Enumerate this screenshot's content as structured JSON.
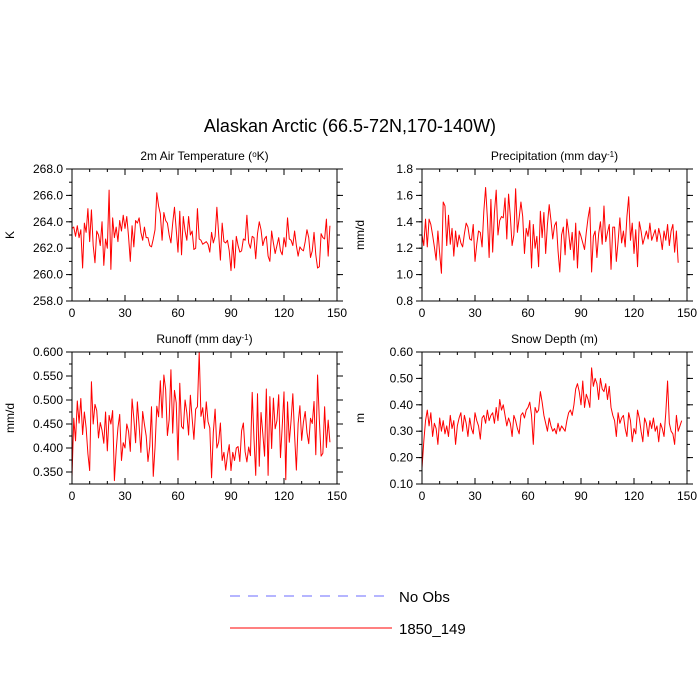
{
  "page_title": "Alaskan Arctic (66.5-72N,170-140W)",
  "legend": {
    "items": [
      {
        "label": "No Obs",
        "color": "#6b6bff",
        "dash": "dashed"
      },
      {
        "label": "1850_149",
        "color": "#ff0000",
        "dash": "solid"
      }
    ]
  },
  "chart_data": [
    {
      "type": "line",
      "title": "2m Air Temperature",
      "title_unit": "°K",
      "ylabel": "K",
      "xlim": [
        0,
        150
      ],
      "ylim": [
        258,
        268
      ],
      "xticks": [
        0,
        30,
        60,
        90,
        120,
        150
      ],
      "xtick_labels": [
        "0",
        "30",
        "60",
        "90",
        "120",
        "150"
      ],
      "yticks": [
        258,
        260,
        262,
        264,
        266,
        268
      ],
      "ytick_labels": [
        "258.0",
        "260.0",
        "262.0",
        "264.0",
        "266.0",
        "268.0"
      ],
      "series": [
        {
          "name": "1850_149",
          "color": "#ff0000",
          "values": [
            263.5,
            263.6,
            262.9,
            263.7,
            262.8,
            263.4,
            260.5,
            263.9,
            263.2,
            265.0,
            262.5,
            264.9,
            262.2,
            260.9,
            263.3,
            263.0,
            262.2,
            264.0,
            260.7,
            262.7,
            262.0,
            266.4,
            260.4,
            264.3,
            262.8,
            263.6,
            262.5,
            264.1,
            263.3,
            264.5,
            263.5,
            264.4,
            262.9,
            261.0,
            263.7,
            262.1,
            264.1,
            263.9,
            264.3,
            263.2,
            262.6,
            263.6,
            262.8,
            262.8,
            262.2,
            262.1,
            262.7,
            263.4,
            266.2,
            265.2,
            264.6,
            262.6,
            264.7,
            264.1,
            263.9,
            263.0,
            262.4,
            263.9,
            265.1,
            263.4,
            261.7,
            264.8,
            261.5,
            264.4,
            263.3,
            262.6,
            264.4,
            263.0,
            263.3,
            261.9,
            262.0,
            265.0,
            262.7,
            262.6,
            262.3,
            262.4,
            262.5,
            262.3,
            261.7,
            263.2,
            262.4,
            262.9,
            265.1,
            263.1,
            261.1,
            263.9,
            262.5,
            262.4,
            262.6,
            261.8,
            260.3,
            262.6,
            260.5,
            262.9,
            262.2,
            261.7,
            261.8,
            262.7,
            262.6,
            264.5,
            262.4,
            262.0,
            262.9,
            262.8,
            261.2,
            263.1,
            264.0,
            263.4,
            262.2,
            262.7,
            262.9,
            261.4,
            261.0,
            263.3,
            262.4,
            261.6,
            262.2,
            262.8,
            261.8,
            261.5,
            262.8,
            262.1,
            264.3,
            262.7,
            262.6,
            262.2,
            263.3,
            262.2,
            261.4,
            262.1,
            261.9,
            261.8,
            262.5,
            263.4,
            262.8,
            261.3,
            261.8,
            263.2,
            261.5,
            260.5,
            260.6,
            263.1,
            262.8,
            262.7,
            264.2,
            261.4,
            263.7
          ]
        }
      ]
    },
    {
      "type": "line",
      "title": "Precipitation (mm day",
      "title_unit": "-1",
      "ylabel": "mm/d",
      "xlim": [
        0,
        150
      ],
      "ylim": [
        0.8,
        1.8
      ],
      "xticks": [
        0,
        30,
        60,
        90,
        120,
        150
      ],
      "xtick_labels": [
        "0",
        "30",
        "60",
        "90",
        "120",
        "150"
      ],
      "yticks": [
        0.8,
        1.0,
        1.2,
        1.4,
        1.6,
        1.8
      ],
      "ytick_labels": [
        "0.8",
        "1.0",
        "1.2",
        "1.4",
        "1.6",
        "1.8"
      ],
      "series": [
        {
          "name": "1850_149",
          "color": "#ff0000",
          "values": [
            1.3,
            1.22,
            1.42,
            1.21,
            1.42,
            1.38,
            1.3,
            1.21,
            1.11,
            1.33,
            1.16,
            1.01,
            1.55,
            1.52,
            1.22,
            1.45,
            1.23,
            1.35,
            1.14,
            1.33,
            1.21,
            1.3,
            1.24,
            1.21,
            1.31,
            1.39,
            1.36,
            1.27,
            1.26,
            1.38,
            1.1,
            1.23,
            1.33,
            1.32,
            1.21,
            1.48,
            1.66,
            1.43,
            1.13,
            1.57,
            1.17,
            1.47,
            1.64,
            1.3,
            1.41,
            1.44,
            1.43,
            1.58,
            1.27,
            1.61,
            1.44,
            1.22,
            1.3,
            1.65,
            1.32,
            1.43,
            1.55,
            1.44,
            1.16,
            1.35,
            1.29,
            1.41,
            1.05,
            1.38,
            1.2,
            1.29,
            1.06,
            1.48,
            1.28,
            1.47,
            1.16,
            1.38,
            1.53,
            1.41,
            1.27,
            1.37,
            1.4,
            1.18,
            1.02,
            1.3,
            1.36,
            1.15,
            1.42,
            1.32,
            1.19,
            1.32,
            1.11,
            1.39,
            1.05,
            1.33,
            1.29,
            1.24,
            1.19,
            1.32,
            1.43,
            1.51,
            1.02,
            1.29,
            1.33,
            1.13,
            1.31,
            1.4,
            1.23,
            1.52,
            1.25,
            1.32,
            1.38,
            1.04,
            1.36,
            1.36,
            1.1,
            1.25,
            1.43,
            1.24,
            1.33,
            1.21,
            1.44,
            1.59,
            1.26,
            1.39,
            1.16,
            1.34,
            1.06,
            1.4,
            1.33,
            1.23,
            1.28,
            1.33,
            1.27,
            1.39,
            1.26,
            1.3,
            1.34,
            1.25,
            1.35,
            1.29,
            1.19,
            1.33,
            1.26,
            1.38,
            1.22,
            1.33,
            1.38,
            1.17,
            1.33,
            1.09
          ]
        }
      ]
    },
    {
      "type": "line",
      "title": "Runoff (mm day",
      "title_unit": "-1",
      "ylabel": "mm/d",
      "xlim": [
        0,
        150
      ],
      "ylim": [
        0.325,
        0.6
      ],
      "xticks": [
        0,
        30,
        60,
        90,
        120,
        150
      ],
      "xtick_labels": [
        "0",
        "30",
        "60",
        "90",
        "120",
        "150"
      ],
      "yticks": [
        0.35,
        0.4,
        0.45,
        0.5,
        0.55,
        0.6
      ],
      "ytick_labels": [
        "0.350",
        "0.400",
        "0.450",
        "0.500",
        "0.550",
        "0.600"
      ],
      "series": [
        {
          "name": "1850_149",
          "color": "#ff0000",
          "values": [
            0.34,
            0.462,
            0.415,
            0.498,
            0.452,
            0.503,
            0.428,
            0.475,
            0.442,
            0.388,
            0.353,
            0.538,
            0.45,
            0.491,
            0.478,
            0.421,
            0.453,
            0.437,
            0.41,
            0.475,
            0.394,
            0.468,
            0.45,
            0.478,
            0.332,
            0.395,
            0.442,
            0.47,
            0.374,
            0.411,
            0.4,
            0.45,
            0.435,
            0.393,
            0.502,
            0.462,
            0.411,
            0.496,
            0.446,
            0.391,
            0.476,
            0.449,
            0.425,
            0.372,
            0.403,
            0.486,
            0.341,
            0.401,
            0.487,
            0.465,
            0.54,
            0.463,
            0.552,
            0.522,
            0.426,
            0.459,
            0.563,
            0.431,
            0.52,
            0.494,
            0.375,
            0.535,
            0.445,
            0.44,
            0.5,
            0.473,
            0.427,
            0.51,
            0.462,
            0.418,
            0.481,
            0.486,
            0.6,
            0.466,
            0.484,
            0.441,
            0.496,
            0.455,
            0.442,
            0.338,
            0.433,
            0.481,
            0.4,
            0.412,
            0.452,
            0.374,
            0.391,
            0.354,
            0.385,
            0.407,
            0.353,
            0.391,
            0.374,
            0.4,
            0.403,
            0.372,
            0.436,
            0.452,
            0.392,
            0.371,
            0.402,
            0.384,
            0.516,
            0.42,
            0.343,
            0.513,
            0.362,
            0.474,
            0.43,
            0.383,
            0.523,
            0.343,
            0.507,
            0.399,
            0.504,
            0.44,
            0.457,
            0.511,
            0.38,
            0.445,
            0.517,
            0.334,
            0.496,
            0.412,
            0.457,
            0.513,
            0.426,
            0.354,
            0.451,
            0.488,
            0.416,
            0.454,
            0.476,
            0.432,
            0.409,
            0.462,
            0.451,
            0.497,
            0.386,
            0.552,
            0.459,
            0.383,
            0.389,
            0.486,
            0.401,
            0.458,
            0.412
          ]
        }
      ]
    },
    {
      "type": "line",
      "title": "Snow Depth (m)",
      "title_unit": "",
      "ylabel": "m",
      "xlim": [
        0,
        150
      ],
      "ylim": [
        0.1,
        0.6
      ],
      "xticks": [
        0,
        30,
        60,
        90,
        120,
        150
      ],
      "xtick_labels": [
        "0",
        "30",
        "60",
        "90",
        "120",
        "150"
      ],
      "yticks": [
        0.1,
        0.2,
        0.3,
        0.4,
        0.5,
        0.6
      ],
      "ytick_labels": [
        "0.10",
        "0.20",
        "0.30",
        "0.40",
        "0.50",
        "0.60"
      ],
      "series": [
        {
          "name": "1850_149",
          "color": "#ff0000",
          "values": [
            0.16,
            0.26,
            0.34,
            0.38,
            0.32,
            0.37,
            0.28,
            0.33,
            0.31,
            0.25,
            0.35,
            0.3,
            0.34,
            0.29,
            0.32,
            0.28,
            0.36,
            0.31,
            0.34,
            0.25,
            0.32,
            0.35,
            0.37,
            0.3,
            0.36,
            0.33,
            0.28,
            0.35,
            0.31,
            0.29,
            0.37,
            0.34,
            0.32,
            0.27,
            0.35,
            0.36,
            0.33,
            0.38,
            0.34,
            0.36,
            0.37,
            0.33,
            0.39,
            0.34,
            0.42,
            0.38,
            0.4,
            0.36,
            0.32,
            0.35,
            0.33,
            0.28,
            0.36,
            0.34,
            0.31,
            0.29,
            0.36,
            0.37,
            0.35,
            0.38,
            0.39,
            0.41,
            0.36,
            0.25,
            0.39,
            0.37,
            0.38,
            0.45,
            0.41,
            0.36,
            0.33,
            0.3,
            0.35,
            0.32,
            0.3,
            0.31,
            0.29,
            0.33,
            0.3,
            0.32,
            0.31,
            0.3,
            0.34,
            0.37,
            0.38,
            0.36,
            0.4,
            0.46,
            0.48,
            0.45,
            0.4,
            0.49,
            0.39,
            0.44,
            0.42,
            0.39,
            0.54,
            0.47,
            0.5,
            0.48,
            0.42,
            0.5,
            0.46,
            0.45,
            0.48,
            0.42,
            0.47,
            0.39,
            0.36,
            0.34,
            0.28,
            0.37,
            0.33,
            0.35,
            0.36,
            0.31,
            0.28,
            0.37,
            0.34,
            0.26,
            0.31,
            0.29,
            0.38,
            0.35,
            0.3,
            0.26,
            0.35,
            0.33,
            0.28,
            0.34,
            0.31,
            0.35,
            0.3,
            0.32,
            0.26,
            0.33,
            0.31,
            0.28,
            0.37,
            0.49,
            0.33,
            0.3,
            0.29,
            0.25,
            0.36,
            0.3,
            0.32,
            0.34
          ]
        }
      ]
    }
  ]
}
